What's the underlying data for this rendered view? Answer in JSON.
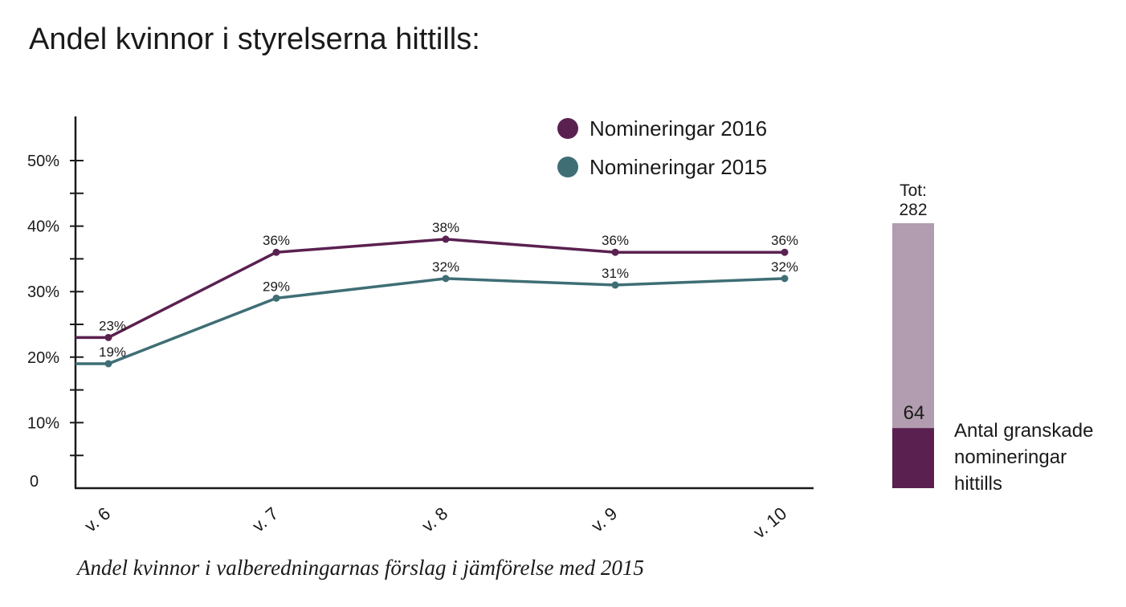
{
  "title": "Andel kvinnor i styrelserna hittills:",
  "subtitle": "Andel kvinnor i valberedningarnas förslag i jämförelse med 2015",
  "chart_data": {
    "type": "line",
    "categories": [
      "v. 6",
      "v. 7",
      "v. 8",
      "v. 9",
      "v. 10"
    ],
    "y_ticks": [
      "0",
      "10%",
      "20%",
      "30%",
      "40%",
      "50%"
    ],
    "y_tick_values": [
      0,
      10,
      20,
      30,
      40,
      50
    ],
    "ylim": [
      0,
      55
    ],
    "series": [
      {
        "name": "Nomineringar 2016",
        "color": "#5a2150",
        "values": [
          23,
          36,
          38,
          36,
          36
        ],
        "labels": [
          "23%",
          "36%",
          "38%",
          "36%",
          "36%"
        ]
      },
      {
        "name": "Nomineringar 2015",
        "color": "#3f6e75",
        "values": [
          19,
          29,
          32,
          31,
          32
        ],
        "labels": [
          "19%",
          "29%",
          "32%",
          "31%",
          "32%"
        ]
      }
    ],
    "legend_position": "top-right"
  },
  "stack": {
    "total_label": "Tot:",
    "total_value": "282",
    "total": 282,
    "part_value": "64",
    "part": 64,
    "caption_lines": [
      "Antal granskade",
      "nomineringar",
      "hittills"
    ],
    "colors": {
      "total": "#b29caf",
      "part": "#5a2150"
    }
  }
}
